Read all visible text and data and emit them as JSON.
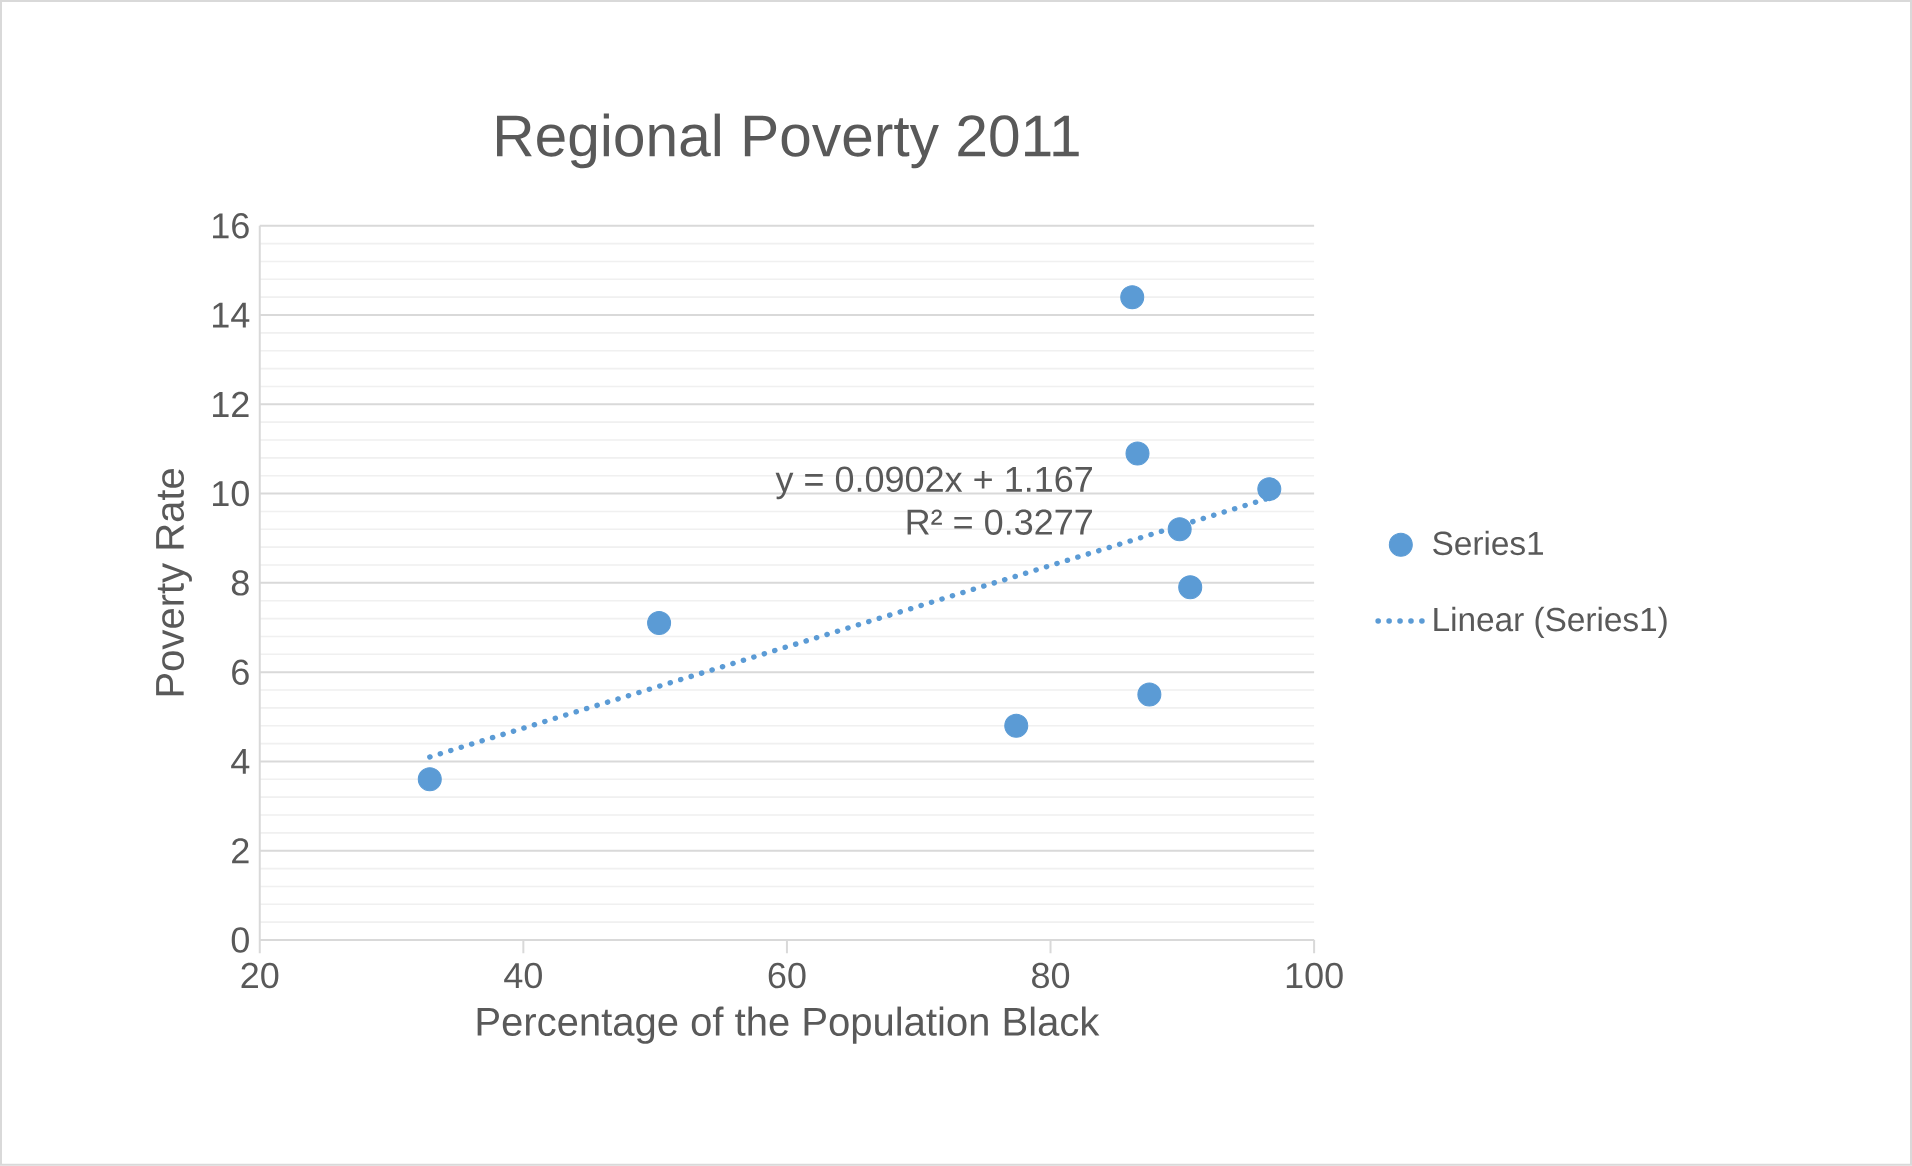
{
  "chart_data": {
    "type": "scatter",
    "title": "Regional Poverty 2011",
    "xlabel": "Percentage of the Population Black",
    "ylabel": "Poverty Rate",
    "xlim": [
      20,
      100
    ],
    "xticks": [
      20,
      40,
      60,
      80,
      100
    ],
    "ylim": [
      0,
      16
    ],
    "yticks": [
      0,
      2,
      4,
      6,
      8,
      10,
      12,
      14,
      16
    ],
    "grid": "y",
    "legend": "right",
    "marker": "circle",
    "annotations": [
      "y = 0.0902x + 1.167",
      "R² = 0.3277"
    ],
    "series": [
      {
        "name": "Series1",
        "color": "#5b9bd5",
        "x": [
          32.9,
          50.3,
          77.4,
          86.2,
          86.6,
          87.5,
          89.8,
          90.6,
          96.6
        ],
        "values": [
          3.6,
          7.1,
          4.8,
          14.4,
          10.9,
          5.5,
          9.2,
          7.9,
          10.1
        ]
      },
      {
        "name": "Linear (Series1)",
        "type": "line",
        "color": "#5b9bd5",
        "marker": "none",
        "line_style": "dotted",
        "x": [
          32.9,
          96.6
        ],
        "values": [
          4.1,
          9.9
        ]
      }
    ]
  }
}
